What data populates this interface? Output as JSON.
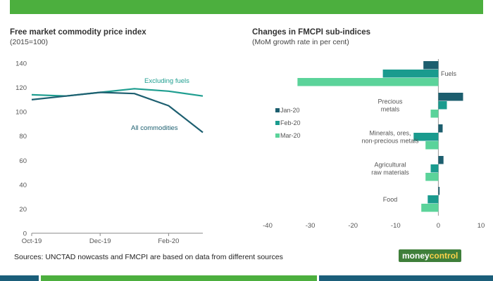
{
  "colors": {
    "header": "#4caf3e",
    "jan": "#1c5e6e",
    "feb": "#1a9b8e",
    "mar": "#5bd39a",
    "excl_fuels": "#1f9e90",
    "all_commodities": "#1d5f70"
  },
  "source": "Sources: UNCTAD nowcasts and FMCPI are based on data from different sources",
  "logo": {
    "part1": "money",
    "part2": "control"
  },
  "chart_data": [
    {
      "type": "line",
      "title": "Free market commodity price index",
      "subtitle": "(2015=100)",
      "x_labels": [
        "Oct-19",
        "Dec-19",
        "Feb-20"
      ],
      "x": [
        "Oct-19",
        "Nov-19",
        "Dec-19",
        "Jan-20",
        "Feb-20",
        "Mar-20"
      ],
      "ylim": [
        0,
        140
      ],
      "yticks": [
        0,
        20,
        40,
        60,
        80,
        100,
        120,
        140
      ],
      "series": [
        {
          "name": "Excluding fuels",
          "values": [
            114,
            113,
            116,
            119,
            117,
            113
          ]
        },
        {
          "name": "All commodities",
          "values": [
            110,
            113,
            116,
            115,
            105,
            83
          ]
        }
      ]
    },
    {
      "type": "bar",
      "orientation": "horizontal",
      "title": "Changes in FMCPI sub-indices",
      "subtitle": "(MoM growth rate in per cent)",
      "categories": [
        "Fuels",
        "Precious metals",
        "Minerals, ores, non-precious metals",
        "Agricultural raw materials",
        "Food"
      ],
      "category_lines": [
        [
          "Fuels"
        ],
        [
          "Precious",
          "metals"
        ],
        [
          "Minerals, ores,",
          "non-precious metals"
        ],
        [
          "Agricultural",
          "raw materials"
        ],
        [
          "Food"
        ]
      ],
      "xlim": [
        -40,
        10
      ],
      "xticks": [
        -40,
        -30,
        -20,
        -10,
        0,
        10
      ],
      "series": [
        {
          "name": "Jan-20",
          "values": [
            -3.5,
            5.8,
            1.0,
            1.2,
            0.3
          ]
        },
        {
          "name": "Feb-20",
          "values": [
            -13,
            2.0,
            -5.8,
            -1.8,
            -2.5
          ]
        },
        {
          "name": "Mar-20",
          "values": [
            -33,
            -1.8,
            -3.0,
            -3.0,
            -4.0
          ]
        }
      ],
      "legend": "left"
    }
  ]
}
